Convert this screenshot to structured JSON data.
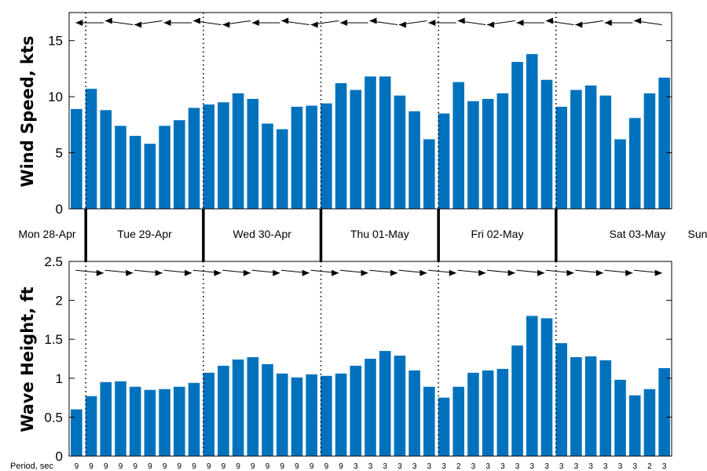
{
  "chart_data": [
    {
      "type": "bar",
      "ylabel": "Wind Speed, kts",
      "ylim": [
        0,
        17.5
      ],
      "yticks": [
        0,
        5,
        10,
        15
      ],
      "bar_color": "#0072bd",
      "values": [
        8.9,
        10.7,
        8.8,
        7.4,
        6.5,
        5.8,
        7.4,
        7.9,
        9.0,
        9.3,
        9.5,
        10.3,
        9.8,
        7.6,
        7.1,
        9.1,
        9.2,
        9.4,
        11.2,
        10.6,
        11.8,
        11.8,
        10.1,
        8.7,
        6.2,
        8.5,
        11.3,
        9.6,
        9.8,
        10.3,
        13.1,
        13.8,
        11.5,
        9.1,
        10.6,
        11.0,
        10.1,
        6.2,
        8.1,
        10.3,
        11.7
      ],
      "direction_arrows": "westward",
      "grid": false
    },
    {
      "type": "bar",
      "ylabel": "Wave Height, ft",
      "ylim": [
        0,
        2.5
      ],
      "yticks": [
        0,
        0.5,
        1,
        1.5,
        2,
        2.5
      ],
      "bar_color": "#0072bd",
      "values": [
        0.6,
        0.77,
        0.95,
        0.96,
        0.89,
        0.85,
        0.86,
        0.89,
        0.94,
        1.07,
        1.16,
        1.24,
        1.27,
        1.18,
        1.06,
        1.01,
        1.05,
        1.03,
        1.06,
        1.16,
        1.25,
        1.35,
        1.29,
        1.1,
        0.89,
        0.75,
        0.89,
        1.07,
        1.1,
        1.12,
        1.42,
        1.8,
        1.77,
        1.45,
        1.27,
        1.28,
        1.23,
        0.98,
        0.78,
        0.86,
        1.13
      ],
      "direction_arrows": "eastward",
      "period_caption": "Period, sec",
      "periods": [
        "9",
        "9",
        "9",
        "9",
        "9",
        "9",
        "9",
        "9",
        "9",
        "9",
        "9",
        "9",
        "9",
        "9",
        "9",
        "9",
        "9",
        "9",
        "9",
        "3",
        "3",
        "3",
        "3",
        "3",
        "3",
        "3",
        "2",
        "3",
        "3",
        "3",
        "3",
        "3",
        "3",
        "3",
        "3",
        "3",
        "3",
        "3",
        "3",
        "2",
        "3"
      ],
      "grid": false
    }
  ],
  "days": [
    "Mon 28-Apr",
    "Tue 29-Apr",
    "Wed 30-Apr",
    "Thu 01-May",
    "Fri 02-May",
    "Sat 03-May",
    "Sun"
  ],
  "day_boundaries": [
    1,
    9,
    17,
    25,
    33
  ]
}
